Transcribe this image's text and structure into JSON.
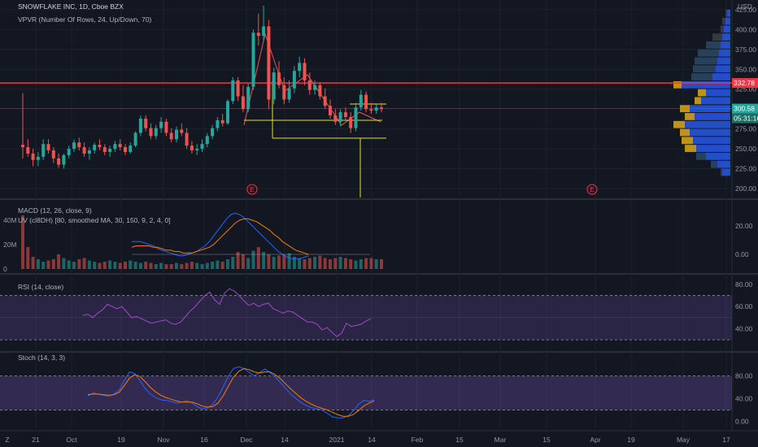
{
  "chart_data": {
    "type": "candlestick",
    "title": "SNOWFLAKE INC, 1D, Cboe BZX",
    "currency": "USD",
    "volume_profile_title": "VPVR (Number Of Rows, 24, Up/Down, 70)",
    "x_ticks": [
      "21",
      "Oct",
      "19",
      "Nov",
      "16",
      "Dec",
      "14",
      "2021",
      "14",
      "Feb",
      "15",
      "Mar",
      "15",
      "Apr",
      "19",
      "May",
      "17"
    ],
    "price_axis": {
      "ticks": [
        "425.00",
        "400.00",
        "375.00",
        "350.00",
        "325.00",
        "275.00",
        "250.00",
        "225.00",
        "200.00"
      ],
      "range": [
        195,
        430
      ]
    },
    "markers": {
      "resistance": "332.78",
      "last_price": "300.58",
      "countdown": "05:31:16"
    },
    "earnings_markers": [
      "E",
      "E"
    ],
    "price": [
      {
        "o": 255,
        "h": 320,
        "l": 238,
        "c": 252
      },
      {
        "o": 252,
        "h": 262,
        "l": 240,
        "c": 244
      },
      {
        "o": 244,
        "h": 250,
        "l": 228,
        "c": 236
      },
      {
        "o": 236,
        "h": 246,
        "l": 228,
        "c": 240
      },
      {
        "o": 240,
        "h": 262,
        "l": 236,
        "c": 256
      },
      {
        "o": 256,
        "h": 262,
        "l": 244,
        "c": 248
      },
      {
        "o": 248,
        "h": 252,
        "l": 232,
        "c": 238
      },
      {
        "o": 238,
        "h": 244,
        "l": 226,
        "c": 230
      },
      {
        "o": 230,
        "h": 244,
        "l": 225,
        "c": 242
      },
      {
        "o": 242,
        "h": 254,
        "l": 238,
        "c": 250
      },
      {
        "o": 250,
        "h": 262,
        "l": 246,
        "c": 258
      },
      {
        "o": 258,
        "h": 264,
        "l": 248,
        "c": 252
      },
      {
        "o": 252,
        "h": 258,
        "l": 240,
        "c": 244
      },
      {
        "o": 244,
        "h": 252,
        "l": 236,
        "c": 248
      },
      {
        "o": 248,
        "h": 258,
        "l": 244,
        "c": 255
      },
      {
        "o": 255,
        "h": 262,
        "l": 248,
        "c": 252
      },
      {
        "o": 252,
        "h": 256,
        "l": 242,
        "c": 246
      },
      {
        "o": 246,
        "h": 254,
        "l": 240,
        "c": 250
      },
      {
        "o": 250,
        "h": 260,
        "l": 246,
        "c": 256
      },
      {
        "o": 256,
        "h": 262,
        "l": 248,
        "c": 252
      },
      {
        "o": 252,
        "h": 256,
        "l": 242,
        "c": 246
      },
      {
        "o": 246,
        "h": 258,
        "l": 244,
        "c": 254
      },
      {
        "o": 254,
        "h": 272,
        "l": 252,
        "c": 270
      },
      {
        "o": 270,
        "h": 292,
        "l": 266,
        "c": 288
      },
      {
        "o": 288,
        "h": 292,
        "l": 272,
        "c": 276
      },
      {
        "o": 276,
        "h": 282,
        "l": 262,
        "c": 266
      },
      {
        "o": 266,
        "h": 280,
        "l": 262,
        "c": 276
      },
      {
        "o": 276,
        "h": 290,
        "l": 270,
        "c": 284
      },
      {
        "o": 284,
        "h": 288,
        "l": 266,
        "c": 270
      },
      {
        "o": 270,
        "h": 276,
        "l": 258,
        "c": 262
      },
      {
        "o": 262,
        "h": 278,
        "l": 258,
        "c": 274
      },
      {
        "o": 274,
        "h": 282,
        "l": 266,
        "c": 270
      },
      {
        "o": 270,
        "h": 276,
        "l": 250,
        "c": 254
      },
      {
        "o": 254,
        "h": 260,
        "l": 244,
        "c": 248
      },
      {
        "o": 248,
        "h": 256,
        "l": 242,
        "c": 250
      },
      {
        "o": 250,
        "h": 262,
        "l": 246,
        "c": 256
      },
      {
        "o": 256,
        "h": 270,
        "l": 252,
        "c": 266
      },
      {
        "o": 266,
        "h": 280,
        "l": 262,
        "c": 276
      },
      {
        "o": 276,
        "h": 290,
        "l": 272,
        "c": 286
      },
      {
        "o": 286,
        "h": 294,
        "l": 278,
        "c": 282
      },
      {
        "o": 282,
        "h": 312,
        "l": 280,
        "c": 310
      },
      {
        "o": 310,
        "h": 340,
        "l": 306,
        "c": 336
      },
      {
        "o": 336,
        "h": 340,
        "l": 310,
        "c": 316
      },
      {
        "o": 316,
        "h": 330,
        "l": 296,
        "c": 300
      },
      {
        "o": 300,
        "h": 332,
        "l": 296,
        "c": 328
      },
      {
        "o": 328,
        "h": 400,
        "l": 324,
        "c": 396
      },
      {
        "o": 396,
        "h": 420,
        "l": 380,
        "c": 392
      },
      {
        "o": 392,
        "h": 430,
        "l": 386,
        "c": 404
      },
      {
        "o": 404,
        "h": 412,
        "l": 300,
        "c": 312
      },
      {
        "o": 312,
        "h": 352,
        "l": 306,
        "c": 346
      },
      {
        "o": 346,
        "h": 360,
        "l": 326,
        "c": 330
      },
      {
        "o": 330,
        "h": 340,
        "l": 306,
        "c": 312
      },
      {
        "o": 312,
        "h": 336,
        "l": 308,
        "c": 326
      },
      {
        "o": 326,
        "h": 354,
        "l": 320,
        "c": 348
      },
      {
        "o": 348,
        "h": 366,
        "l": 340,
        "c": 358
      },
      {
        "o": 358,
        "h": 364,
        "l": 330,
        "c": 336
      },
      {
        "o": 336,
        "h": 346,
        "l": 318,
        "c": 324
      },
      {
        "o": 324,
        "h": 336,
        "l": 318,
        "c": 330
      },
      {
        "o": 330,
        "h": 334,
        "l": 312,
        "c": 316
      },
      {
        "o": 316,
        "h": 326,
        "l": 300,
        "c": 304
      },
      {
        "o": 304,
        "h": 312,
        "l": 288,
        "c": 292
      },
      {
        "o": 292,
        "h": 300,
        "l": 280,
        "c": 284
      },
      {
        "o": 284,
        "h": 300,
        "l": 278,
        "c": 296
      },
      {
        "o": 296,
        "h": 302,
        "l": 286,
        "c": 290
      },
      {
        "o": 290,
        "h": 296,
        "l": 270,
        "c": 276
      },
      {
        "o": 276,
        "h": 308,
        "l": 272,
        "c": 302
      },
      {
        "o": 302,
        "h": 324,
        "l": 298,
        "c": 318
      },
      {
        "o": 318,
        "h": 322,
        "l": 296,
        "c": 300
      },
      {
        "o": 300,
        "h": 308,
        "l": 294,
        "c": 298
      },
      {
        "o": 298,
        "h": 306,
        "l": 294,
        "c": 302
      },
      {
        "o": 302,
        "h": 308,
        "l": 296,
        "c": 300
      }
    ],
    "volume": [
      44,
      18,
      10,
      8,
      6,
      7,
      8,
      12,
      9,
      7,
      6,
      8,
      9,
      7,
      6,
      5,
      6,
      7,
      6,
      5,
      6,
      7,
      6,
      5,
      6,
      5,
      4,
      5,
      4,
      4,
      5,
      4,
      5,
      6,
      5,
      4,
      5,
      6,
      7,
      6,
      8,
      10,
      14,
      12,
      9,
      15,
      18,
      14,
      12,
      10,
      11,
      12,
      13,
      10,
      9,
      8,
      9,
      10,
      11,
      9,
      8,
      9,
      10,
      9,
      8,
      7,
      8,
      9,
      9,
      8,
      8
    ],
    "macd_line": [
      0,
      0,
      0,
      0,
      0,
      0,
      0,
      0,
      0,
      0,
      0,
      0,
      0,
      0,
      0,
      0,
      0,
      0,
      9,
      9,
      9,
      8,
      7,
      6,
      4,
      3,
      2,
      1,
      0,
      -1,
      -1,
      0,
      1,
      2,
      4,
      6,
      9,
      13,
      17,
      21,
      25,
      28,
      29,
      28,
      26,
      23,
      20,
      17,
      14,
      11,
      8,
      5,
      2,
      0,
      -2,
      -3,
      -3,
      -3,
      -2,
      -1
    ],
    "signal_line": [
      0,
      0,
      0,
      0,
      0,
      0,
      0,
      0,
      0,
      0,
      0,
      0,
      0,
      0,
      0,
      0,
      0,
      0,
      5,
      6,
      6,
      6,
      6,
      5,
      5,
      4,
      3,
      3,
      2,
      2,
      1,
      1,
      1,
      2,
      3,
      4,
      5,
      7,
      10,
      13,
      16,
      19,
      22,
      24,
      25,
      25,
      24,
      23,
      21,
      19,
      17,
      14,
      12,
      9,
      7,
      5,
      3,
      2,
      1,
      0
    ],
    "rsi": {
      "title": "RSI (14, close)",
      "ticks": [
        "80.00",
        "60.00",
        "40.00"
      ],
      "range": [
        25,
        85
      ],
      "bands": [
        70,
        30
      ],
      "values": [
        52,
        53,
        50,
        54,
        57,
        62,
        60,
        58,
        60,
        55,
        50,
        51,
        49,
        47,
        45,
        46,
        47,
        48,
        45,
        44,
        46,
        51,
        56,
        60,
        65,
        70,
        73,
        66,
        62,
        72,
        76,
        74,
        70,
        65,
        61,
        63,
        60,
        62,
        63,
        58,
        56,
        54,
        56,
        55,
        52,
        49,
        46,
        46,
        44,
        39,
        41,
        37,
        33,
        36,
        45,
        42,
        43,
        44,
        47,
        49
      ]
    },
    "stoch": {
      "title": "Stoch (14, 3, 3)",
      "ticks": [
        "80.00",
        "40.00",
        "0.00"
      ],
      "range": [
        -5,
        105
      ],
      "bands": [
        80,
        20
      ],
      "k": [
        45,
        50,
        48,
        46,
        44,
        48,
        55,
        72,
        87,
        84,
        72,
        58,
        48,
        42,
        38,
        37,
        35,
        32,
        34,
        36,
        33,
        26,
        22,
        24,
        30,
        43,
        60,
        80,
        93,
        96,
        93,
        86,
        80,
        86,
        92,
        86,
        78,
        68,
        58,
        48,
        40,
        33,
        28,
        24,
        22,
        20,
        14,
        8,
        6,
        6,
        10,
        18,
        30,
        37,
        35,
        38
      ],
      "d": [
        47,
        48,
        48,
        47,
        46,
        47,
        51,
        63,
        76,
        82,
        79,
        70,
        60,
        52,
        46,
        42,
        39,
        36,
        34,
        34,
        34,
        31,
        27,
        25,
        26,
        32,
        45,
        62,
        78,
        88,
        93,
        91,
        87,
        85,
        87,
        87,
        82,
        75,
        66,
        57,
        49,
        41,
        35,
        30,
        26,
        23,
        20,
        16,
        12,
        9,
        9,
        12,
        19,
        27,
        32,
        36
      ]
    }
  }
}
